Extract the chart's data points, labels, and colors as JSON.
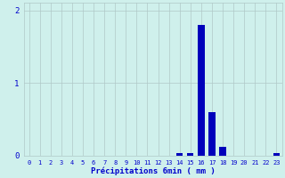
{
  "categories": [
    0,
    1,
    2,
    3,
    4,
    5,
    6,
    7,
    8,
    9,
    10,
    11,
    12,
    13,
    14,
    15,
    16,
    17,
    18,
    19,
    20,
    21,
    22,
    23
  ],
  "values": [
    0,
    0,
    0,
    0,
    0,
    0,
    0,
    0,
    0,
    0,
    0,
    0,
    0,
    0,
    0.04,
    0.04,
    1.8,
    0.6,
    0.12,
    0,
    0,
    0,
    0,
    0.04
  ],
  "bar_color": "#0000bb",
  "background_color": "#cff0ec",
  "grid_color": "#b0c8c8",
  "text_color": "#0000cc",
  "xlabel": "Précipitations 6min ( mm )",
  "ylim": [
    0,
    2.1
  ],
  "yticks": [
    0,
    1,
    2
  ],
  "xlim": [
    -0.5,
    23.5
  ],
  "bar_width": 0.6
}
